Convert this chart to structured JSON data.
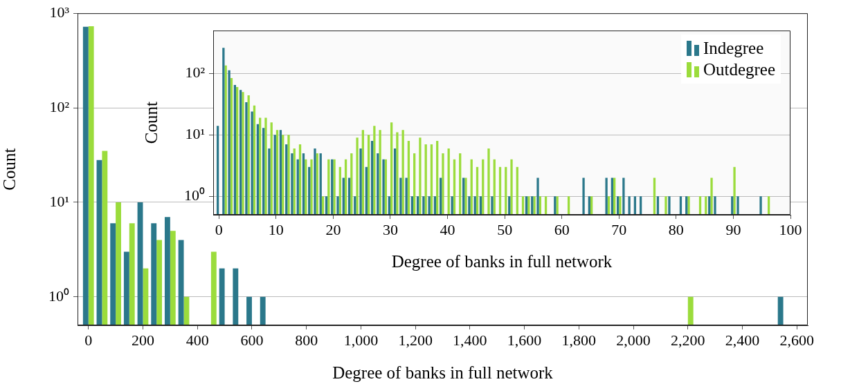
{
  "chart_data": [
    {
      "type": "bar",
      "xlabel": "Degree of banks in full network",
      "ylabel": "Count",
      "log": true,
      "grid": "y",
      "legend": false,
      "x": [
        0,
        50,
        100,
        150,
        200,
        250,
        300,
        350,
        450,
        500,
        550,
        600,
        650,
        2200,
        2550
      ],
      "series": [
        {
          "color": "#2b788b",
          "values": [
            720,
            28,
            6,
            3,
            10,
            6,
            7,
            4,
            null,
            2,
            2,
            1,
            1,
            null,
            1
          ]
        },
        {
          "color": "#9bdc3c",
          "values": [
            730,
            35,
            10,
            6,
            2,
            4,
            5,
            1,
            3,
            null,
            null,
            null,
            null,
            1,
            null
          ]
        }
      ],
      "xlim": [
        -40,
        2640
      ],
      "xticks": [
        0,
        200,
        400,
        600,
        800,
        {
          "value": 1000,
          "label": "1,000"
        },
        {
          "value": 1200,
          "label": "1,200"
        },
        {
          "value": 1400,
          "label": "1,400"
        },
        {
          "value": 1600,
          "label": "1,600"
        },
        {
          "value": 1800,
          "label": "1,800"
        },
        {
          "value": 2000,
          "label": "2,000"
        },
        {
          "value": 2200,
          "label": "2,200"
        },
        {
          "value": 2400,
          "label": "2,400"
        },
        {
          "value": 2600,
          "label": "2,600"
        }
      ],
      "ylim": [
        0.5,
        1000
      ],
      "yticks": [
        {
          "value": 1,
          "label": "10⁰"
        },
        {
          "value": 10,
          "label": "10¹"
        },
        {
          "value": 100,
          "label": "10²"
        },
        {
          "value": 1000,
          "label": "10³"
        }
      ]
    },
    {
      "type": "bar",
      "xlabel": "Degree of banks in full network",
      "ylabel": "Count",
      "log": true,
      "grid": "y",
      "legend": "top right",
      "x": [
        0,
        1,
        2,
        3,
        4,
        5,
        6,
        7,
        8,
        9,
        10,
        11,
        12,
        13,
        14,
        15,
        16,
        17,
        18,
        19,
        20,
        21,
        22,
        23,
        24,
        25,
        26,
        27,
        28,
        29,
        30,
        31,
        32,
        33,
        34,
        35,
        36,
        37,
        38,
        39,
        40,
        41,
        42,
        43,
        44,
        45,
        46,
        47,
        48,
        49,
        50,
        51,
        52,
        53,
        54,
        55,
        56,
        57,
        58,
        59,
        60,
        61,
        62,
        63,
        64,
        65,
        66,
        67,
        68,
        69,
        70,
        71,
        72,
        73,
        74,
        75,
        76,
        77,
        78,
        79,
        80,
        81,
        82,
        83,
        84,
        85,
        86,
        87,
        88,
        89,
        90,
        91,
        92,
        93,
        94,
        95,
        96
      ],
      "series": [
        {
          "name": "Indegree",
          "color": "#2b788b",
          "values": [
            14,
            262,
            113,
            65,
            54,
            34,
            24,
            15,
            13,
            6,
            10,
            12,
            7,
            5,
            4,
            5,
            3,
            6,
            5,
            1,
            4,
            1,
            2,
            2,
            1,
            6,
            3,
            8,
            5,
            4,
            1,
            6,
            2,
            2,
            1,
            1,
            1,
            1,
            1,
            2,
            null,
            1,
            null,
            2,
            1,
            1,
            1,
            null,
            1,
            null,
            null,
            1,
            null,
            null,
            1,
            1,
            2,
            null,
            null,
            1,
            null,
            null,
            null,
            null,
            2,
            1,
            null,
            null,
            2,
            2,
            1,
            2,
            1,
            1,
            1,
            null,
            null,
            1,
            null,
            1,
            null,
            1,
            1,
            null,
            null,
            null,
            1,
            1,
            null,
            null,
            1,
            1,
            null,
            null,
            null,
            1,
            null
          ]
        },
        {
          "name": "Outdegree",
          "color": "#9bdc3c",
          "values": [
            null,
            135,
            84,
            60,
            50,
            44,
            30,
            19,
            19,
            16,
            12,
            10,
            10,
            6,
            7,
            4,
            4,
            5,
            1,
            4,
            4,
            3,
            4,
            5,
            9,
            12,
            10,
            14,
            12,
            4,
            16,
            11,
            12,
            8,
            5,
            9,
            7,
            7,
            8,
            5,
            6,
            4,
            5,
            2,
            4,
            3,
            4,
            6,
            4,
            3,
            3,
            4,
            3,
            1,
            1,
            1,
            1,
            1,
            null,
            1,
            null,
            1,
            null,
            null,
            null,
            1,
            null,
            null,
            1,
            2,
            1,
            null,
            null,
            null,
            null,
            null,
            2,
            null,
            1,
            null,
            null,
            null,
            1,
            null,
            1,
            1,
            2,
            null,
            null,
            null,
            3,
            null,
            null,
            null,
            null,
            null,
            1
          ]
        }
      ],
      "xlim": [
        -1,
        100
      ],
      "xticks": [
        0,
        10,
        20,
        30,
        40,
        50,
        60,
        70,
        80,
        90,
        100
      ],
      "ylim": [
        0.5,
        500
      ],
      "yticks": [
        {
          "value": 1,
          "label": "10⁰"
        },
        {
          "value": 10,
          "label": "10¹"
        },
        {
          "value": 100,
          "label": "10²"
        }
      ]
    }
  ]
}
